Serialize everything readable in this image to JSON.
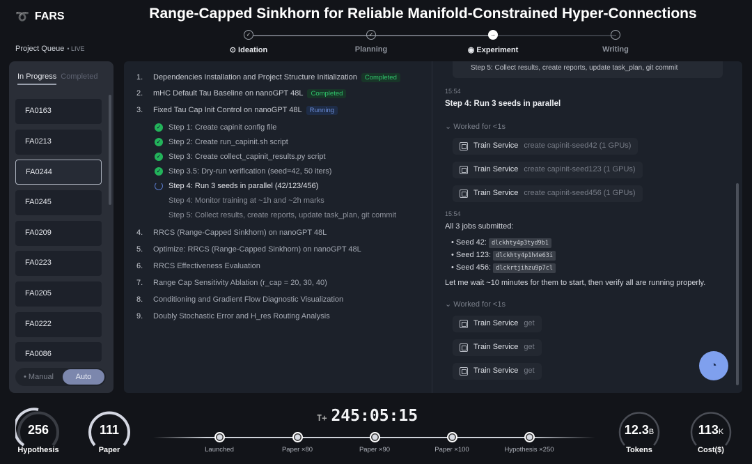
{
  "app": {
    "name": "FARS",
    "title": "Range-Capped Sinkhorn for Reliable Manifold-Constrained Hyper-Connections"
  },
  "queue": {
    "label": "Project Queue",
    "live": "• LIVE",
    "tabs": [
      "In Progress",
      "Completed"
    ],
    "items": [
      "FA0163",
      "FA0213",
      "FA0244",
      "FA0245",
      "FA0209",
      "FA0223",
      "FA0205",
      "FA0222",
      "FA0086"
    ],
    "selected": "FA0244",
    "mode": {
      "manual": "Manual",
      "auto": "Auto",
      "active": "Auto"
    }
  },
  "stages": [
    {
      "label": "Ideation",
      "state": "done"
    },
    {
      "label": "Planning",
      "state": "done"
    },
    {
      "label": "Experiment",
      "state": "current"
    },
    {
      "label": "Writing",
      "state": "pending"
    }
  ],
  "tasks": [
    {
      "num": "1.",
      "title": "Dependencies Installation and Project Structure Initialization",
      "status": "Completed"
    },
    {
      "num": "2.",
      "title": "mHC Default Tau Baseline on nanoGPT 48L",
      "status": "Completed"
    },
    {
      "num": "3.",
      "title": "Fixed Tau Cap Init Control on nanoGPT 48L",
      "status": "Running"
    },
    {
      "num": "4.",
      "title": "RRCS (Range-Capped Sinkhorn) on nanoGPT 48L"
    },
    {
      "num": "5.",
      "title": "Optimize: RRCS (Range-Capped Sinkhorn) on nanoGPT 48L"
    },
    {
      "num": "6.",
      "title": "RRCS Effectiveness Evaluation"
    },
    {
      "num": "7.",
      "title": "Range Cap Sensitivity Ablation (r_cap = 20, 30, 40)"
    },
    {
      "num": "8.",
      "title": "Conditioning and Gradient Flow Diagnostic Visualization"
    },
    {
      "num": "9.",
      "title": "Doubly Stochastic Error and H_res Routing Analysis"
    }
  ],
  "steps": [
    {
      "label": "Step 1: Create capinit config file",
      "state": "done"
    },
    {
      "label": "Step 2: Create run_capinit.sh script",
      "state": "done"
    },
    {
      "label": "Step 3: Create collect_capinit_results.py script",
      "state": "done"
    },
    {
      "label": "Step 3.5: Dry-run verification (seed=42, 50 iters)",
      "state": "done"
    },
    {
      "label": "Step 4: Run 3 seeds in parallel (42/123/456)",
      "state": "running"
    },
    {
      "label": "Step 4: Monitor training at ~1h and ~2h marks",
      "state": "pending"
    },
    {
      "label": "Step 5: Collect results, create reports, update task_plan, git commit",
      "state": "pending"
    }
  ],
  "log": {
    "top_card": "Step 5: Collect results, create reports, update task_plan, git commit",
    "time1": "15:54",
    "heading": "Step 4: Run 3 seeds in parallel",
    "worked1": "Worked for <1s",
    "calls1": [
      {
        "service": "Train Service",
        "arg": "create capinit-seed42 (1 GPUs)"
      },
      {
        "service": "Train Service",
        "arg": "create capinit-seed123 (1 GPUs)"
      },
      {
        "service": "Train Service",
        "arg": "create capinit-seed456 (1 GPUs)"
      }
    ],
    "time2": "15:54",
    "msg": "All 3 jobs submitted:",
    "seeds": [
      {
        "label": "Seed 42:",
        "id": "dlckhty4p3tyd9b1"
      },
      {
        "label": "Seed 123:",
        "id": "dlckhty4p1h4e63i"
      },
      {
        "label": "Seed 456:",
        "id": "dlckrtjihzu9p7cl"
      }
    ],
    "wait": "Let me wait ~10 minutes for them to start, then verify all are running properly.",
    "worked2": "Worked for <1s",
    "calls2": [
      {
        "service": "Train Service",
        "arg": "get"
      },
      {
        "service": "Train Service",
        "arg": "get"
      },
      {
        "service": "Train Service",
        "arg": "get"
      }
    ]
  },
  "stats": {
    "hypothesis": {
      "value": "256",
      "label": "Hypothesis"
    },
    "paper": {
      "value": "111",
      "label": "Paper"
    },
    "tokens": {
      "value": "12.3",
      "unit": "B",
      "label": "Tokens"
    },
    "cost": {
      "value": "113",
      "unit": "K",
      "label": "Cost($)"
    }
  },
  "timer": {
    "prefix": "T+",
    "value": "245:05:15"
  },
  "milestones": [
    "Launched",
    "Paper ×80",
    "Paper ×90",
    "Paper ×100",
    "Hypothesis ×250"
  ]
}
